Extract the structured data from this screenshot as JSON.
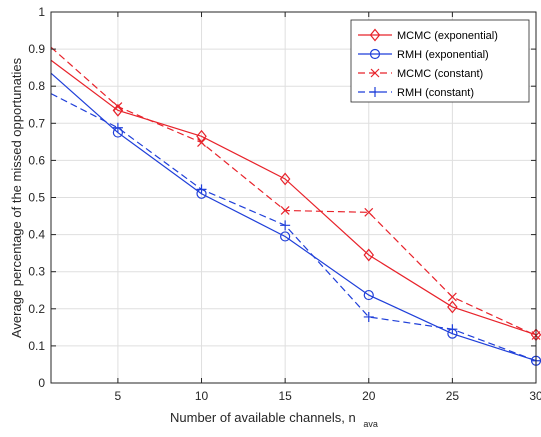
{
  "chart_data": {
    "type": "line",
    "title": "",
    "xlabel": "Number of available channels, n",
    "xlabel_subscript": "ava",
    "ylabel": "Average percentage of the missed opportunaties",
    "xlim": [
      1,
      30
    ],
    "ylim": [
      0,
      1
    ],
    "xticks": [
      5,
      10,
      15,
      20,
      25,
      30
    ],
    "yticks": [
      0,
      0.1,
      0.2,
      0.3,
      0.4,
      0.5,
      0.6,
      0.7,
      0.8,
      0.9,
      1
    ],
    "xtick_labels": [
      "5",
      "10",
      "15",
      "20",
      "25",
      "30"
    ],
    "ytick_labels": [
      "0",
      "0.1",
      "0.2",
      "0.3",
      "0.4",
      "0.5",
      "0.6",
      "0.7",
      "0.8",
      "0.9",
      "1"
    ],
    "grid": true,
    "legend_position": "top-right",
    "series": [
      {
        "name": "MCMC (exponential)",
        "color": "#e8232b",
        "line": "solid",
        "marker": "diamond",
        "x": [
          1,
          5,
          10,
          15,
          20,
          25,
          30
        ],
        "y": [
          0.87,
          0.735,
          0.665,
          0.55,
          0.345,
          0.205,
          0.13
        ],
        "marker_x": [
          5,
          10,
          15,
          20,
          25,
          30
        ]
      },
      {
        "name": "RMH (exponential)",
        "color": "#1f3fd9",
        "line": "solid",
        "marker": "circle",
        "x": [
          1,
          5,
          10,
          15,
          20,
          25,
          30
        ],
        "y": [
          0.835,
          0.675,
          0.51,
          0.395,
          0.237,
          0.133,
          0.06
        ],
        "marker_x": [
          5,
          10,
          15,
          20,
          25,
          30
        ]
      },
      {
        "name": "MCMC (constant)",
        "color": "#e8232b",
        "line": "dashed",
        "marker": "x",
        "x": [
          1,
          5,
          10,
          15,
          20,
          25,
          30
        ],
        "y": [
          0.905,
          0.745,
          0.648,
          0.465,
          0.46,
          0.232,
          0.128
        ],
        "marker_x": [
          5,
          10,
          15,
          20,
          25,
          30
        ]
      },
      {
        "name": "RMH (constant)",
        "color": "#1f3fd9",
        "line": "dashed",
        "marker": "plus",
        "x": [
          1,
          5,
          10,
          15,
          20,
          25,
          30
        ],
        "y": [
          0.78,
          0.688,
          0.522,
          0.425,
          0.178,
          0.145,
          0.06
        ],
        "marker_x": [
          5,
          10,
          15,
          20,
          25,
          30
        ]
      }
    ]
  }
}
